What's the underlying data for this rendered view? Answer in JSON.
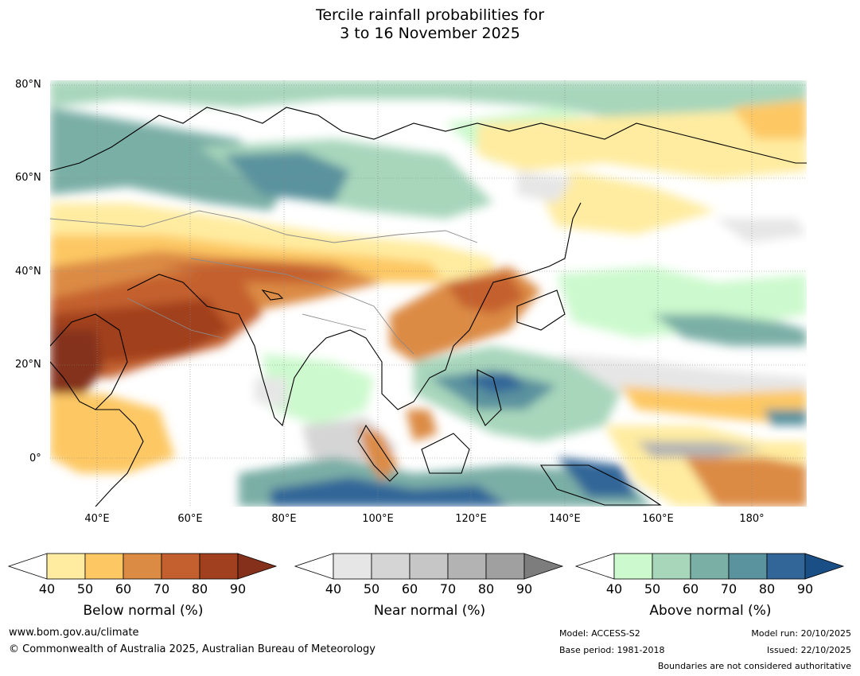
{
  "title_line1": "Tercile rainfall probabilities for",
  "title_line2": "3 to 16 November 2025",
  "map": {
    "lat_labels": [
      "80°N",
      "60°N",
      "40°N",
      "20°N",
      "0°"
    ],
    "lon_labels": [
      "40°E",
      "60°E",
      "80°E",
      "100°E",
      "120°E",
      "140°E",
      "160°E",
      "180°"
    ]
  },
  "legends": [
    {
      "title": "Below normal (%)",
      "ticks": [
        "40",
        "50",
        "60",
        "70",
        "80",
        "90"
      ],
      "colors": [
        "#ffffff",
        "#ffeca0",
        "#fdc863",
        "#dc8b44",
        "#c4602f",
        "#a1401f",
        "#84301a"
      ]
    },
    {
      "title": "Near normal (%)",
      "ticks": [
        "40",
        "50",
        "60",
        "70",
        "80",
        "90"
      ],
      "colors": [
        "#ffffff",
        "#e6e6e6",
        "#d5d5d5",
        "#c6c6c6",
        "#b3b3b3",
        "#a0a0a0",
        "#7d7d7d"
      ]
    },
    {
      "title": "Above normal (%)",
      "ticks": [
        "40",
        "50",
        "60",
        "70",
        "80",
        "90"
      ],
      "colors": [
        "#ffffff",
        "#ccf9cd",
        "#a7d6bb",
        "#7aafa6",
        "#5a929e",
        "#336698",
        "#1a4f86"
      ]
    }
  ],
  "footer": {
    "website": "www.bom.gov.au/climate",
    "copyright": "© Commonwealth of Australia 2025, Australian Bureau of Meteorology",
    "model": "Model: ACCESS-S2",
    "base_period": "Base period: 1981-2018",
    "model_run": "Model run: 20/10/2025",
    "issued": "Issued: 22/10/2025",
    "disclaimer": "Boundaries are not considered authoritative"
  }
}
